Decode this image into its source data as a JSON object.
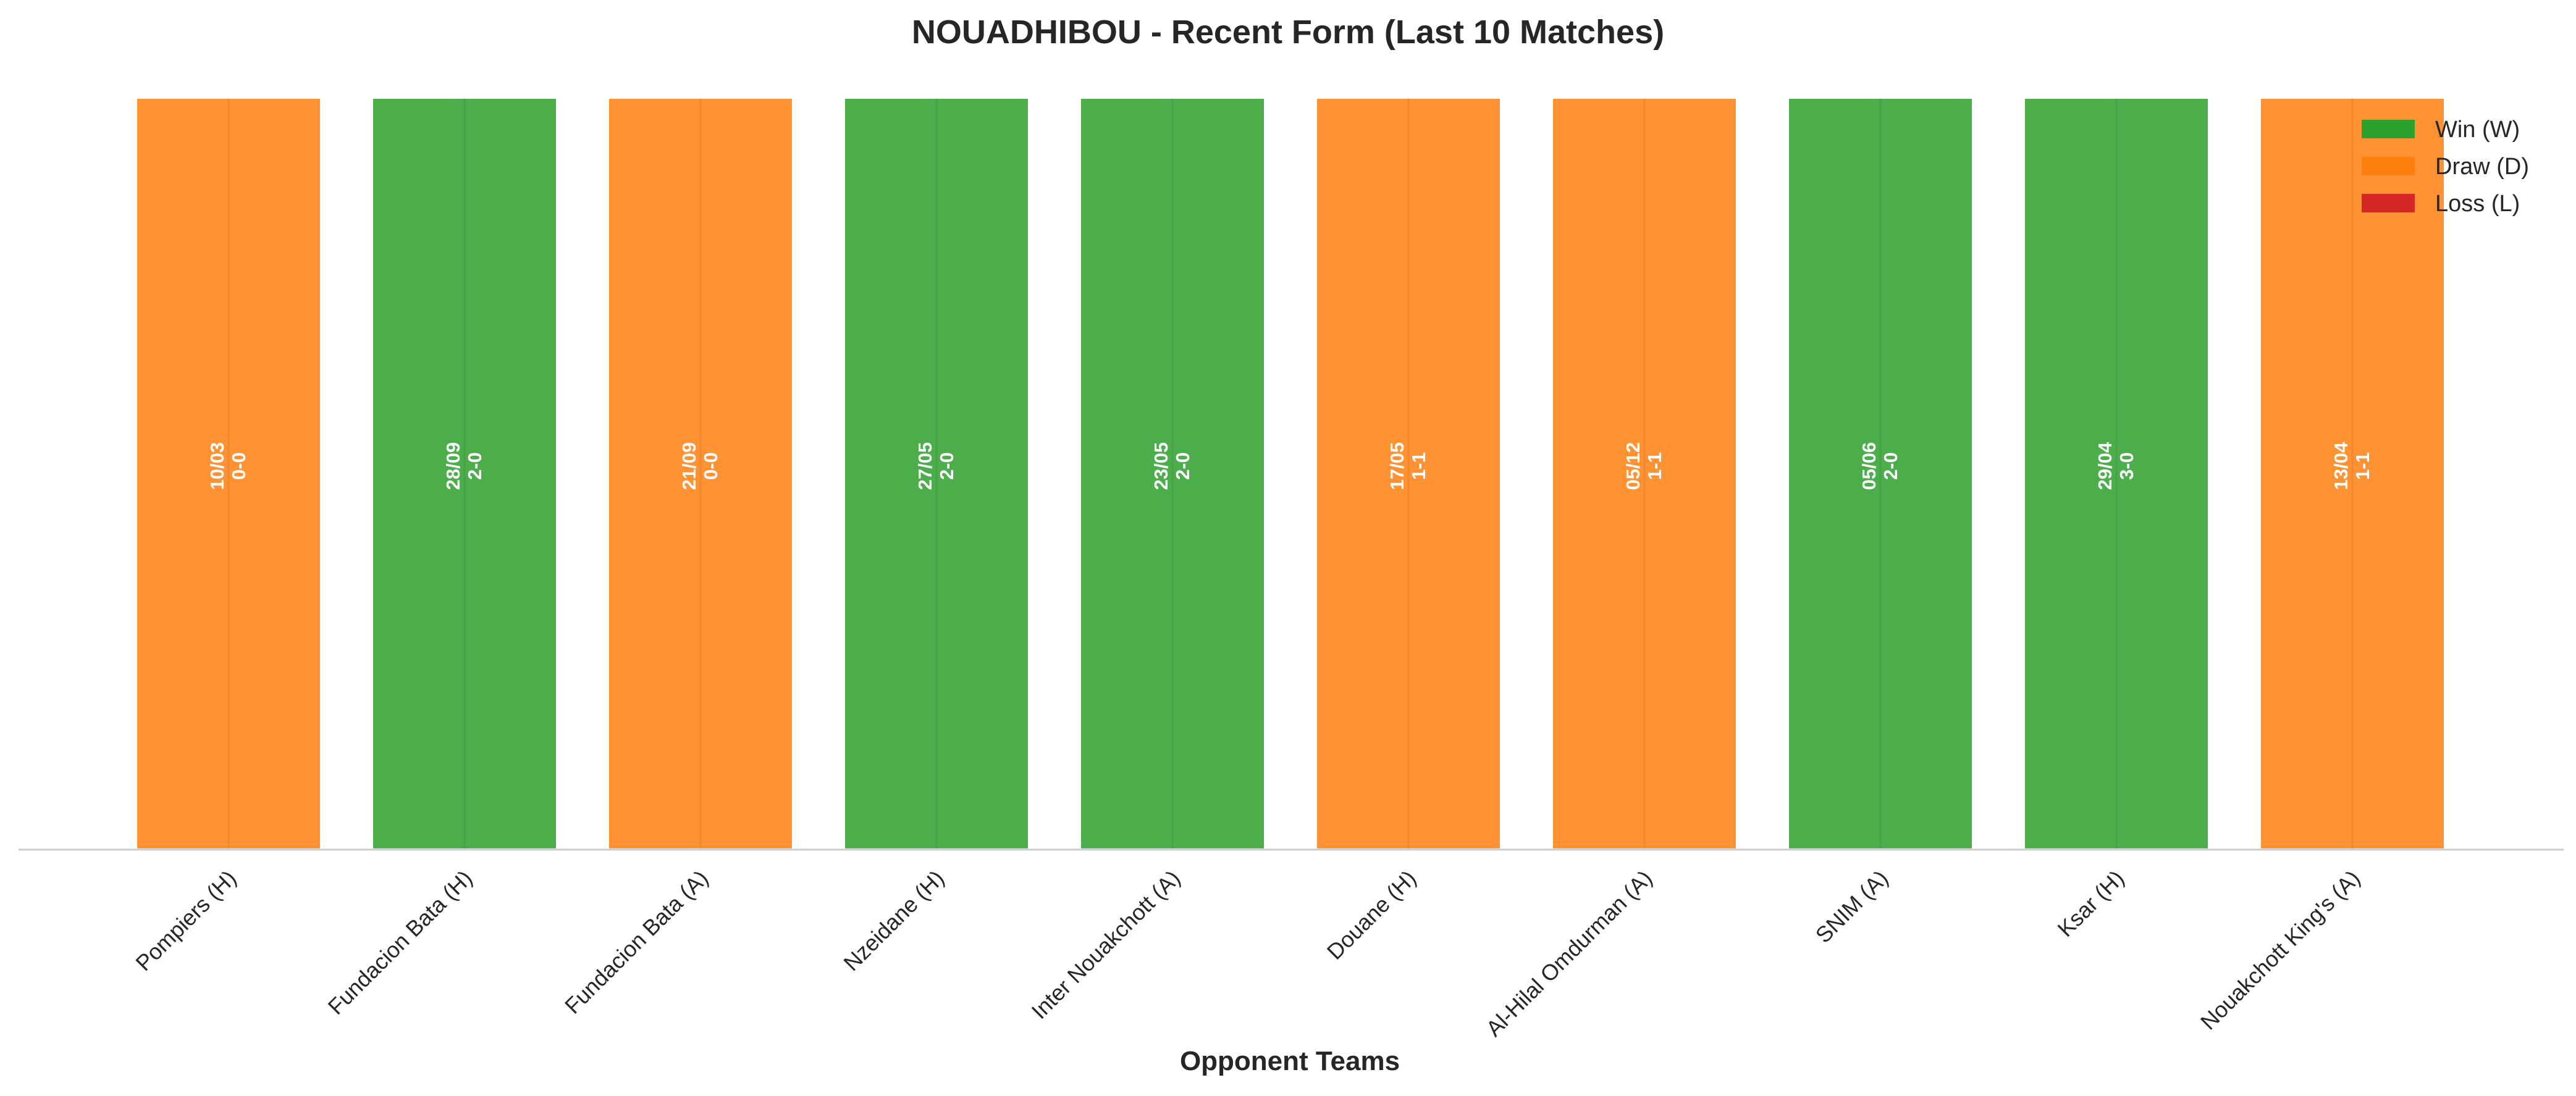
{
  "chart_data": {
    "type": "bar",
    "title": "NOUADHIBOU - Recent Form (Last 10 Matches)",
    "xlabel": "Opponent Teams",
    "ylabel": "",
    "categories": [
      "Pompiers (H)",
      "Fundacion Bata (H)",
      "Fundacion Bata (A)",
      "Nzeidane (H)",
      "Inter Nouakchott (A)",
      "Douane (H)",
      "Al-Hilal Omdurman (A)",
      "SNIM (A)",
      "Ksar (H)",
      "Nouakchott King's (A)"
    ],
    "values": [
      1,
      1,
      1,
      1,
      1,
      1,
      1,
      1,
      1,
      1
    ],
    "results": [
      "D",
      "W",
      "D",
      "W",
      "W",
      "D",
      "D",
      "W",
      "W",
      "D"
    ],
    "dates": [
      "10/03",
      "28/09",
      "21/09",
      "27/05",
      "23/05",
      "17/05",
      "05/12",
      "05/06",
      "29/04",
      "13/04"
    ],
    "scores": [
      "0-0",
      "2-0",
      "0-0",
      "2-0",
      "2-0",
      "1-1",
      "1-1",
      "2-0",
      "3-0",
      "1-1"
    ],
    "ylim": [
      0,
      1
    ],
    "grid": false,
    "legend": {
      "placement": "top-right",
      "entries": [
        {
          "key": "W",
          "label": "Win (W)",
          "color": "#2ca02c"
        },
        {
          "key": "D",
          "label": "Draw (D)",
          "color": "#ff7f0e"
        },
        {
          "key": "L",
          "label": "Loss (L)",
          "color": "#d62728"
        }
      ]
    },
    "colors": {
      "W": "#2ca02c",
      "D": "#ff7f0e",
      "L": "#d62728"
    }
  }
}
